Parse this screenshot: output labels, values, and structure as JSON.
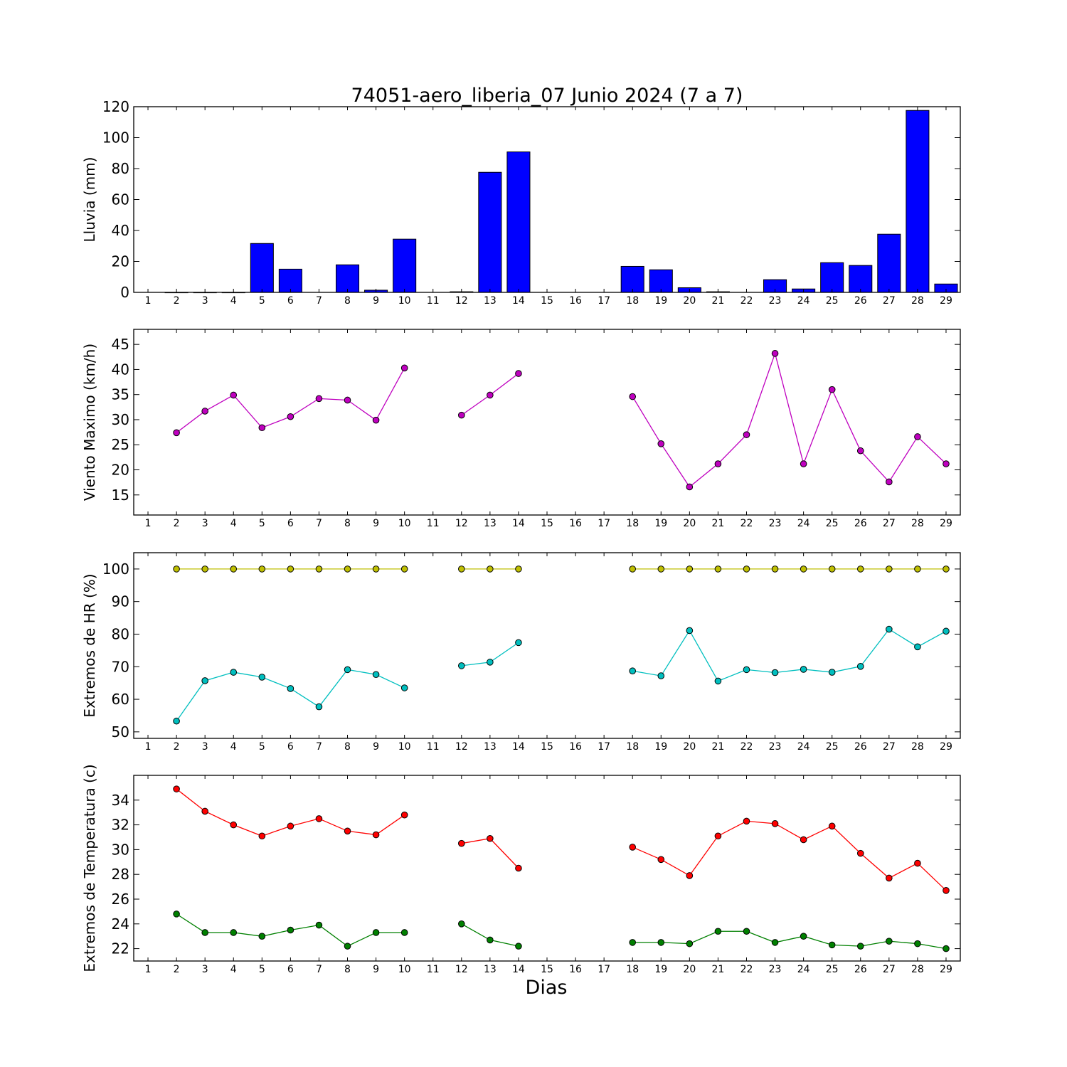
{
  "chart_data": [
    {
      "type": "bar",
      "title": "74051-aero_liberia_07 Junio 2024  (7 a 7)",
      "ylabel": "Lluvia (mm)",
      "xlabel": "",
      "ylim": [
        0,
        120
      ],
      "yticks": [
        0,
        20,
        40,
        60,
        80,
        100,
        120
      ],
      "categories": [
        "1",
        "2",
        "3",
        "4",
        "5",
        "6",
        "7",
        "8",
        "9",
        "10",
        "11",
        "12",
        "13",
        "14",
        "15",
        "16",
        "17",
        "18",
        "19",
        "20",
        "21",
        "22",
        "23",
        "24",
        "25",
        "26",
        "27",
        "28",
        "29"
      ],
      "series": [
        {
          "color": "#0000ff",
          "values": [
            null,
            0.0,
            0.0,
            0.0,
            31.6,
            15.0,
            null,
            17.8,
            1.4,
            34.4,
            null,
            0.4,
            77.6,
            90.8,
            null,
            null,
            null,
            16.8,
            14.6,
            3.0,
            0.4,
            null,
            8.2,
            2.2,
            19.2,
            17.4,
            37.6,
            117.6,
            5.4
          ]
        }
      ]
    },
    {
      "type": "line",
      "ylabel": "Viento Maximo (km/h)",
      "xlabel": "",
      "ylim": [
        11,
        48
      ],
      "yticks": [
        15,
        20,
        25,
        30,
        35,
        40,
        45
      ],
      "categories": [
        "1",
        "2",
        "3",
        "4",
        "5",
        "6",
        "7",
        "8",
        "9",
        "10",
        "11",
        "12",
        "13",
        "14",
        "15",
        "16",
        "17",
        "18",
        "19",
        "20",
        "21",
        "22",
        "23",
        "24",
        "25",
        "26",
        "27",
        "28",
        "29"
      ],
      "series": [
        {
          "color": "#bf00bf",
          "values": [
            null,
            27.4,
            31.7,
            34.9,
            28.4,
            30.6,
            34.2,
            33.9,
            29.9,
            40.3,
            null,
            30.9,
            34.9,
            39.2,
            null,
            null,
            null,
            34.6,
            25.2,
            16.6,
            21.2,
            27.0,
            43.2,
            21.2,
            36.0,
            23.8,
            17.6,
            26.6,
            21.2
          ]
        }
      ]
    },
    {
      "type": "line",
      "ylabel": "Extremos de HR (%)",
      "xlabel": "",
      "ylim": [
        48,
        105
      ],
      "yticks": [
        50,
        60,
        70,
        80,
        90,
        100
      ],
      "categories": [
        "1",
        "2",
        "3",
        "4",
        "5",
        "6",
        "7",
        "8",
        "9",
        "10",
        "11",
        "12",
        "13",
        "14",
        "15",
        "16",
        "17",
        "18",
        "19",
        "20",
        "21",
        "22",
        "23",
        "24",
        "25",
        "26",
        "27",
        "28",
        "29"
      ],
      "series": [
        {
          "color": "#bfbf00",
          "values": [
            null,
            100,
            100,
            100,
            100,
            100,
            100,
            100,
            100,
            100,
            null,
            100,
            100,
            100,
            null,
            null,
            null,
            100,
            100,
            100,
            100,
            100,
            100,
            100,
            100,
            100,
            100,
            100,
            100
          ]
        },
        {
          "color": "#00bfbf",
          "values": [
            null,
            53.3,
            65.7,
            68.3,
            66.8,
            63.3,
            57.7,
            69.1,
            67.6,
            63.5,
            null,
            70.3,
            71.4,
            77.4,
            null,
            null,
            null,
            68.7,
            67.2,
            81.1,
            65.6,
            69.1,
            68.2,
            69.2,
            68.3,
            70.1,
            81.5,
            76.1,
            80.9
          ]
        }
      ]
    },
    {
      "type": "line",
      "ylabel": "Extremos de Temperatura (c)",
      "xlabel": "Dias",
      "ylim": [
        21,
        36
      ],
      "yticks": [
        22,
        24,
        26,
        28,
        30,
        32,
        34
      ],
      "categories": [
        "1",
        "2",
        "3",
        "4",
        "5",
        "6",
        "7",
        "8",
        "9",
        "10",
        "11",
        "12",
        "13",
        "14",
        "15",
        "16",
        "17",
        "18",
        "19",
        "20",
        "21",
        "22",
        "23",
        "24",
        "25",
        "26",
        "27",
        "28",
        "29"
      ],
      "series": [
        {
          "color": "#ff0000",
          "values": [
            null,
            34.9,
            33.1,
            32.0,
            31.1,
            31.9,
            32.5,
            31.5,
            31.2,
            32.8,
            null,
            30.5,
            30.9,
            28.5,
            null,
            null,
            null,
            30.2,
            29.2,
            27.9,
            31.1,
            32.3,
            32.1,
            30.8,
            31.9,
            29.7,
            27.7,
            28.9,
            26.7
          ]
        },
        {
          "color": "#008000",
          "values": [
            null,
            24.8,
            23.3,
            23.3,
            23.0,
            23.5,
            23.9,
            22.2,
            23.3,
            23.3,
            null,
            24.0,
            22.7,
            22.2,
            null,
            null,
            null,
            22.5,
            22.5,
            22.4,
            23.4,
            23.4,
            22.5,
            23.0,
            22.3,
            22.2,
            22.6,
            22.4,
            22.0
          ]
        }
      ]
    }
  ]
}
